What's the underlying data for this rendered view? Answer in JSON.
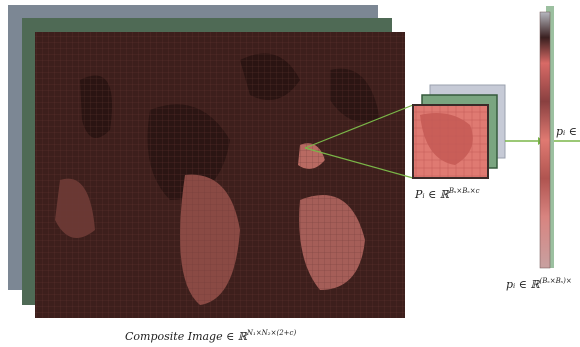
{
  "composite_label": {
    "name": "Composite Image",
    "member": "∈ ℝ",
    "superscript": "N₁×N₂×(2+c)"
  },
  "patch_label": {
    "name": "Pᵢ",
    "member": "∈ ℝ",
    "superscript": "Bₛ×Bₛ×c"
  },
  "vector_label": {
    "name": "pᵢ",
    "member": "∈ ℝ",
    "superscript": "(Bₛ×Bₛ)×"
  },
  "output_label": {
    "name": "pᵢ",
    "member": "∈"
  }
}
